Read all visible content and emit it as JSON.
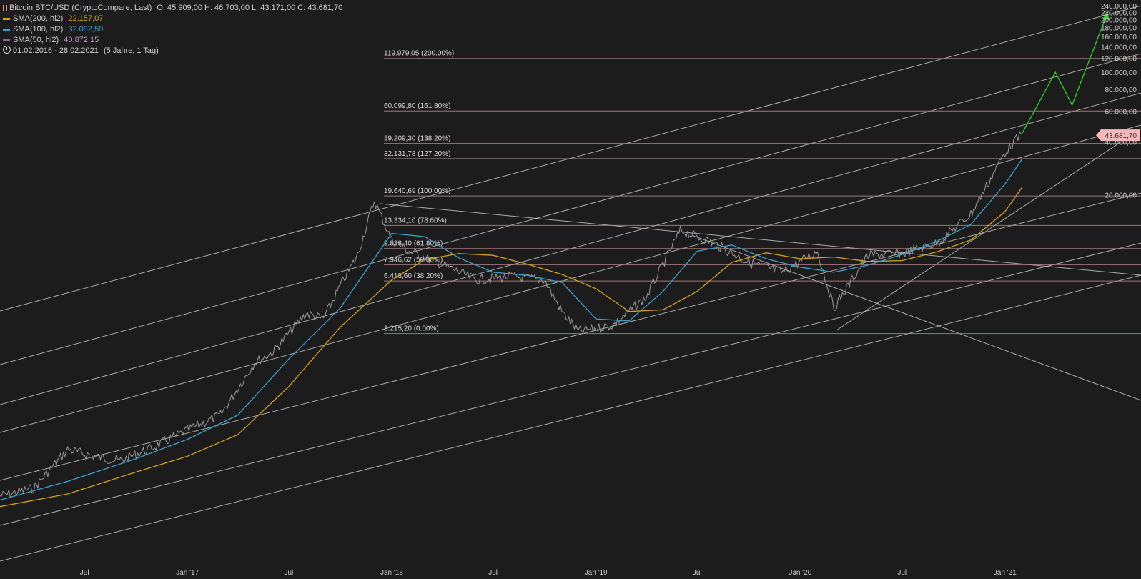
{
  "header": {
    "title": "Bitcoin BTC/USD (CryptoCompare, Last)",
    "ohlc": "O: 45.909,00  H: 46.703,00  L: 43.171,00  C: 43.681,70",
    "range": "01.02.2016 - 28.02.2021",
    "range_detail": "(5 Jahre, 1 Tag)"
  },
  "indicators": [
    {
      "label": "SMA(200, hl2)",
      "value": "22.157,07",
      "color": "#d4a017"
    },
    {
      "label": "SMA(100, hl2)",
      "value": "32.092,59",
      "color": "#3aa0d0"
    },
    {
      "label": "SMA(50, hl2)",
      "value": "40.872,15",
      "color": "#8a6f8a"
    }
  ],
  "chart_data": {
    "type": "line",
    "title": "Bitcoin BTC/USD (CryptoCompare, Last)",
    "scale": "log",
    "y_ticks": [
      "240.000,00",
      "220.000,00",
      "200.000,00",
      "180.000,00",
      "160.000,00",
      "140.000,00",
      "120.000,00",
      "100.000,00",
      "80.000,00",
      "60.000,00",
      "40.000,00",
      "20.000,00"
    ],
    "x_ticks": [
      "Jul",
      "Jan '17",
      "Jul",
      "Jan '18",
      "Jul",
      "Jan '19",
      "Jul",
      "Jan '20",
      "Jul",
      "Jan '21"
    ],
    "last_price_label": "43.681,70",
    "fib_levels": [
      {
        "label": "119.979,05 (200.00%)",
        "value": 119979.05
      },
      {
        "label": "60.099,80 (161.80%)",
        "value": 60099.8
      },
      {
        "label": "39.209,30 (138.20%)",
        "value": 39209.3
      },
      {
        "label": "32.131,78 (127.20%)",
        "value": 32131.78
      },
      {
        "label": "19.640,69 (100.00%)",
        "value": 19640.69
      },
      {
        "label": "13.334,10 (78.60%)",
        "value": 13334.1
      },
      {
        "label": "9.838,40 (61.80%)",
        "value": 9838.4
      },
      {
        "label": "7.946,62 (50.00%)",
        "value": 7946.62
      },
      {
        "label": "6.418,60 (38.20%)",
        "value": 6418.6
      },
      {
        "label": "3.215,20 (0.00%)",
        "value": 3215.2
      }
    ],
    "series": [
      {
        "name": "Bitcoin BTC/USD",
        "color": "#9a9a9a",
        "dates": [
          "2016-02",
          "2016-04",
          "2016-06",
          "2016-07",
          "2016-09",
          "2016-11",
          "2017-01",
          "2017-03",
          "2017-05",
          "2017-06",
          "2017-08",
          "2017-09",
          "2017-10",
          "2017-11",
          "2017-12",
          "2018-01",
          "2018-02",
          "2018-04",
          "2018-06",
          "2018-08",
          "2018-10",
          "2018-11",
          "2018-12",
          "2019-02",
          "2019-04",
          "2019-05",
          "2019-06",
          "2019-08",
          "2019-10",
          "2019-12",
          "2020-02",
          "2020-03",
          "2020-05",
          "2020-07",
          "2020-09",
          "2020-11",
          "2020-12",
          "2021-01",
          "2021-02"
        ],
        "values": [
          380,
          420,
          700,
          660,
          600,
          720,
          900,
          1100,
          2200,
          2500,
          4200,
          3900,
          6000,
          9000,
          18500,
          11000,
          9500,
          8000,
          6500,
          6800,
          6500,
          4300,
          3300,
          3600,
          5200,
          8000,
          12500,
          10500,
          8200,
          7200,
          9500,
          4500,
          9000,
          9200,
          10500,
          15500,
          23000,
          35000,
          45000
        ]
      },
      {
        "name": "SMA(200, hl2)",
        "color": "#d4a017",
        "dates": [
          "2016-02",
          "2016-06",
          "2016-10",
          "2017-01",
          "2017-04",
          "2017-07",
          "2017-10",
          "2018-01",
          "2018-03",
          "2018-05",
          "2018-07",
          "2018-09",
          "2018-11",
          "2019-01",
          "2019-03",
          "2019-05",
          "2019-07",
          "2019-09",
          "2019-11",
          "2020-01",
          "2020-03",
          "2020-05",
          "2020-07",
          "2020-09",
          "2020-11",
          "2021-01",
          "2021-02"
        ],
        "values": [
          330,
          390,
          520,
          640,
          850,
          1600,
          3500,
          6500,
          8500,
          9200,
          9000,
          8000,
          7000,
          5800,
          4300,
          4400,
          5600,
          8200,
          9300,
          8600,
          8800,
          8300,
          8400,
          9400,
          11000,
          16000,
          22157
        ]
      },
      {
        "name": "SMA(100, hl2)",
        "color": "#3aa0d0",
        "dates": [
          "2016-02",
          "2016-06",
          "2016-10",
          "2017-01",
          "2017-04",
          "2017-07",
          "2017-10",
          "2018-01",
          "2018-03",
          "2018-05",
          "2018-07",
          "2018-09",
          "2018-11",
          "2019-01",
          "2019-03",
          "2019-05",
          "2019-07",
          "2019-09",
          "2019-11",
          "2020-01",
          "2020-03",
          "2020-05",
          "2020-07",
          "2020-09",
          "2020-11",
          "2021-01",
          "2021-02"
        ],
        "values": [
          360,
          460,
          620,
          800,
          1100,
          2300,
          4500,
          12000,
          11500,
          8700,
          7200,
          6900,
          6300,
          3900,
          3800,
          5600,
          9500,
          10300,
          8600,
          7700,
          7200,
          7900,
          9100,
          10800,
          13500,
          23000,
          32092
        ]
      }
    ],
    "arrow_path": {
      "dates": [
        "2021-02",
        "2021-04",
        "2021-05",
        "2021-07"
      ],
      "values": [
        45000,
        100000,
        65000,
        210000
      ]
    }
  }
}
